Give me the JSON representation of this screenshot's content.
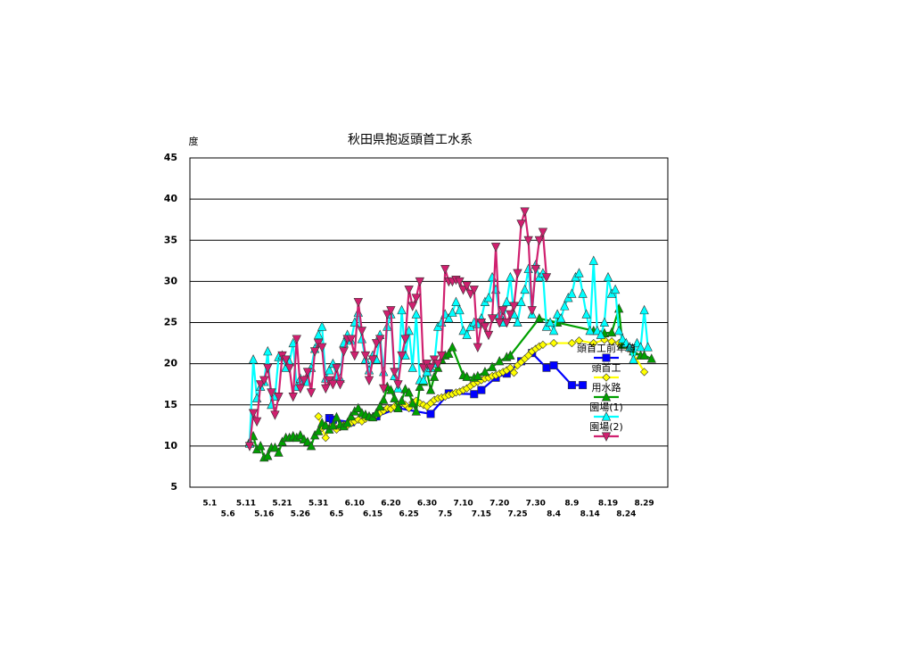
{
  "chart_data": {
    "type": "line",
    "title": "秋田県抱返頭首工水系",
    "y_label": "度",
    "categories": [
      null,
      null,
      null,
      null,
      null,
      "5.1",
      null,
      null,
      null,
      null,
      "5.6",
      null,
      null,
      null,
      null,
      "5.11",
      null,
      null,
      null,
      null,
      "5.16",
      null,
      null,
      null,
      null,
      "5.21",
      null,
      null,
      null,
      null,
      "5.26",
      null,
      null,
      null,
      null,
      "5.31",
      null,
      null,
      null,
      null,
      "6.5",
      null,
      null,
      null,
      null,
      "6.10",
      null,
      null,
      null,
      null,
      "6.15",
      null,
      null,
      null,
      null,
      "6.20",
      null,
      null,
      null,
      null,
      "6.25",
      null,
      null,
      null,
      null,
      "6.30",
      null,
      null,
      null,
      null,
      "7.5",
      null,
      null,
      null,
      null,
      "7.10",
      null,
      null,
      null,
      null,
      "7.15",
      null,
      null,
      null,
      null,
      "7.20",
      null,
      null,
      null,
      null,
      "7.25",
      null,
      null,
      null,
      null,
      "7.30",
      null,
      null,
      null,
      null,
      "8.4",
      null,
      null,
      null,
      null,
      "8.9",
      null,
      null,
      null,
      null,
      "8.14",
      null,
      null,
      null,
      null,
      "8.19",
      null,
      null,
      null,
      null,
      "8.24",
      null,
      null,
      null,
      null,
      "8.29",
      null,
      null,
      null,
      null,
      null,
      null
    ],
    "ylim": [
      5,
      45
    ],
    "yticks": [
      5,
      10,
      15,
      20,
      25,
      30,
      35,
      40,
      45
    ],
    "grid": true,
    "legend": "right",
    "connect_gaps": true,
    "series": [
      {
        "name": "頭首工前年値",
        "color": "#0000ff",
        "marker": "square",
        "values": [
          null,
          null,
          null,
          null,
          null,
          null,
          null,
          null,
          null,
          null,
          null,
          null,
          null,
          null,
          null,
          null,
          null,
          null,
          null,
          null,
          null,
          null,
          null,
          null,
          null,
          null,
          null,
          null,
          null,
          null,
          null,
          null,
          null,
          null,
          null,
          null,
          null,
          null,
          13.4,
          13.2,
          null,
          null,
          null,
          null,
          12.9,
          null,
          null,
          null,
          null,
          null,
          null,
          13.6,
          null,
          null,
          null,
          null,
          null,
          14.6,
          null,
          null,
          null,
          null,
          null,
          null,
          null,
          null,
          13.9,
          null,
          null,
          null,
          null,
          16.4,
          null,
          null,
          null,
          null,
          null,
          null,
          16.3,
          null,
          16.8,
          null,
          null,
          null,
          18.3,
          null,
          null,
          18.8,
          null,
          null,
          null,
          20.3,
          null,
          null,
          21.3,
          null,
          null,
          null,
          19.5,
          null,
          19.8,
          null,
          null,
          null,
          null,
          17.4,
          null,
          null,
          17.4,
          null,
          null,
          null,
          null,
          null,
          null,
          null,
          null,
          null,
          null,
          null,
          null,
          null,
          null,
          null,
          null,
          null,
          null,
          null,
          null,
          null,
          null,
          null
        ]
      },
      {
        "name": "頭首工",
        "color": "#ffff00",
        "marker": "diamond",
        "values": [
          null,
          null,
          null,
          null,
          null,
          null,
          null,
          null,
          null,
          null,
          null,
          null,
          null,
          null,
          null,
          null,
          null,
          null,
          null,
          null,
          null,
          null,
          null,
          null,
          null,
          null,
          null,
          null,
          null,
          null,
          null,
          null,
          null,
          null,
          null,
          13.6,
          12.2,
          11.0,
          12.2,
          12.5,
          12.0,
          12.3,
          12.6,
          12.5,
          12.8,
          13.0,
          13.2,
          13.0,
          13.3,
          13.6,
          13.5,
          13.8,
          14.0,
          14.3,
          14.6,
          14.5,
          14.8,
          15.0,
          15.2,
          15.0,
          14.6,
          15.3,
          15.5,
          15.2,
          15.0,
          14.8,
          15.2,
          15.6,
          15.8,
          15.9,
          16.0,
          16.2,
          16.3,
          16.5,
          16.6,
          16.8,
          17.0,
          17.3,
          17.6,
          17.8,
          18.0,
          18.2,
          18.3,
          18.5,
          18.6,
          18.8,
          19.0,
          19.2,
          19.5,
          18.9,
          19.8,
          20.2,
          20.6,
          21.0,
          21.5,
          21.8,
          22.1,
          22.3,
          null,
          null,
          22.5,
          null,
          null,
          null,
          null,
          22.5,
          null,
          22.8,
          null,
          null,
          null,
          22.5,
          null,
          null,
          22.9,
          null,
          22.7,
          null,
          22.5,
          null,
          null,
          null,
          21.2,
          null,
          null,
          19.0,
          null,
          null,
          null,
          null,
          null,
          null
        ]
      },
      {
        "name": "用水路",
        "color": "#00a000",
        "marker": "triangle-up",
        "values": [
          null,
          null,
          null,
          null,
          null,
          null,
          null,
          null,
          null,
          null,
          null,
          null,
          null,
          null,
          null,
          null,
          10.5,
          11.2,
          9.6,
          10.0,
          8.6,
          8.8,
          9.8,
          9.8,
          9.2,
          10.5,
          11.0,
          11.0,
          11.2,
          11.0,
          11.3,
          10.8,
          10.5,
          10.0,
          11.3,
          11.8,
          12.8,
          12.5,
          12.0,
          12.5,
          13.5,
          12.6,
          12.4,
          12.8,
          13.6,
          14.2,
          14.6,
          14.0,
          13.8,
          13.6,
          13.5,
          14.0,
          14.8,
          15.6,
          17.2,
          16.8,
          15.8,
          14.6,
          15.5,
          16.9,
          16.5,
          15.2,
          14.2,
          17.2,
          17.8,
          19.0,
          16.8,
          18.4,
          19.5,
          20.5,
          21.0,
          21.2,
          22.0,
          null,
          null,
          18.6,
          18.4,
          null,
          18.3,
          18.5,
          null,
          19.0,
          null,
          19.6,
          null,
          20.3,
          null,
          20.8,
          21.0,
          null,
          null,
          null,
          null,
          null,
          null,
          null,
          25.5,
          null,
          null,
          null,
          null,
          25.0,
          null,
          null,
          null,
          null,
          null,
          null,
          null,
          null,
          null,
          24.0,
          null,
          null,
          23.7,
          null,
          23.8,
          null,
          26.7,
          22.3,
          null,
          22.0,
          21.5,
          null,
          21.0,
          21.0,
          null,
          20.6,
          null,
          null,
          null,
          null
        ]
      },
      {
        "name": "園場(1)",
        "color": "#00ffff",
        "marker": "triangle-up",
        "values": [
          null,
          null,
          null,
          null,
          null,
          null,
          null,
          null,
          null,
          null,
          null,
          null,
          null,
          null,
          null,
          null,
          10.3,
          20.5,
          15.8,
          17.2,
          17.8,
          21.5,
          15.0,
          16.0,
          20.8,
          21.0,
          19.5,
          20.2,
          22.5,
          17.2,
          18.2,
          18.0,
          17.8,
          19.5,
          21.8,
          23.5,
          24.5,
          18.2,
          19.2,
          20.0,
          18.5,
          18.2,
          22.5,
          23.5,
          22.8,
          25.0,
          26.2,
          23.0,
          20.5,
          19.2,
          21.0,
          20.5,
          23.5,
          19.0,
          24.5,
          26.0,
          18.5,
          17.0,
          26.5,
          21.0,
          24.0,
          19.5,
          26.0,
          18.0,
          18.0,
          19.0,
          19.5,
          20.0,
          24.5,
          25.0,
          26.0,
          25.5,
          26.2,
          27.5,
          26.5,
          24.0,
          23.5,
          24.5,
          25.0,
          24.8,
          25.5,
          27.5,
          28.0,
          30.5,
          29.0,
          26.0,
          25.0,
          27.5,
          30.5,
          26.0,
          25.0,
          27.5,
          29.0,
          31.5,
          26.0,
          32.0,
          30.5,
          31.0,
          24.5,
          25.0,
          24.0,
          26.0,
          25.5,
          27.0,
          28.0,
          28.5,
          30.5,
          31.0,
          28.5,
          26.0,
          24.0,
          32.5,
          24.0,
          23.5,
          25.0,
          30.5,
          28.5,
          29.0,
          24.0,
          23.0,
          22.5,
          22.0,
          20.5,
          22.5,
          22.0,
          26.5,
          22.0,
          null,
          null,
          null,
          null,
          null
        ]
      },
      {
        "name": "園場(2)",
        "color": "#d0206f",
        "marker": "triangle-down",
        "values": [
          null,
          null,
          null,
          null,
          null,
          null,
          null,
          null,
          null,
          null,
          null,
          null,
          null,
          null,
          null,
          null,
          10.0,
          14.0,
          13.0,
          17.5,
          18.0,
          19.5,
          16.5,
          13.8,
          16.0,
          21.0,
          20.5,
          19.5,
          16.0,
          23.0,
          17.0,
          18.0,
          19.0,
          16.5,
          21.5,
          22.5,
          22.0,
          17.0,
          18.0,
          17.5,
          19.5,
          17.5,
          21.5,
          23.0,
          23.0,
          21.0,
          27.5,
          24.0,
          21.0,
          18.0,
          20.5,
          22.5,
          23.0,
          17.0,
          26.0,
          26.5,
          19.0,
          17.5,
          21.0,
          23.0,
          29.0,
          27.0,
          28.0,
          30.0,
          19.5,
          20.0,
          19.5,
          20.5,
          20.0,
          21.0,
          31.5,
          30.0,
          30.0,
          30.2,
          30.0,
          29.0,
          29.5,
          28.5,
          29.0,
          22.0,
          25.0,
          24.5,
          23.5,
          25.5,
          34.2,
          25.0,
          26.5,
          25.0,
          26.0,
          27.0,
          31.0,
          37.0,
          38.5,
          35.0,
          26.5,
          31.5,
          35.0,
          36.0,
          30.5,
          null,
          null,
          null,
          null,
          null,
          null,
          null,
          null,
          null,
          null,
          null,
          null,
          null,
          null,
          null,
          null,
          null,
          null,
          null,
          null,
          null,
          null,
          null,
          null,
          null,
          null,
          null,
          null,
          null,
          null,
          null,
          null,
          null
        ]
      }
    ]
  }
}
